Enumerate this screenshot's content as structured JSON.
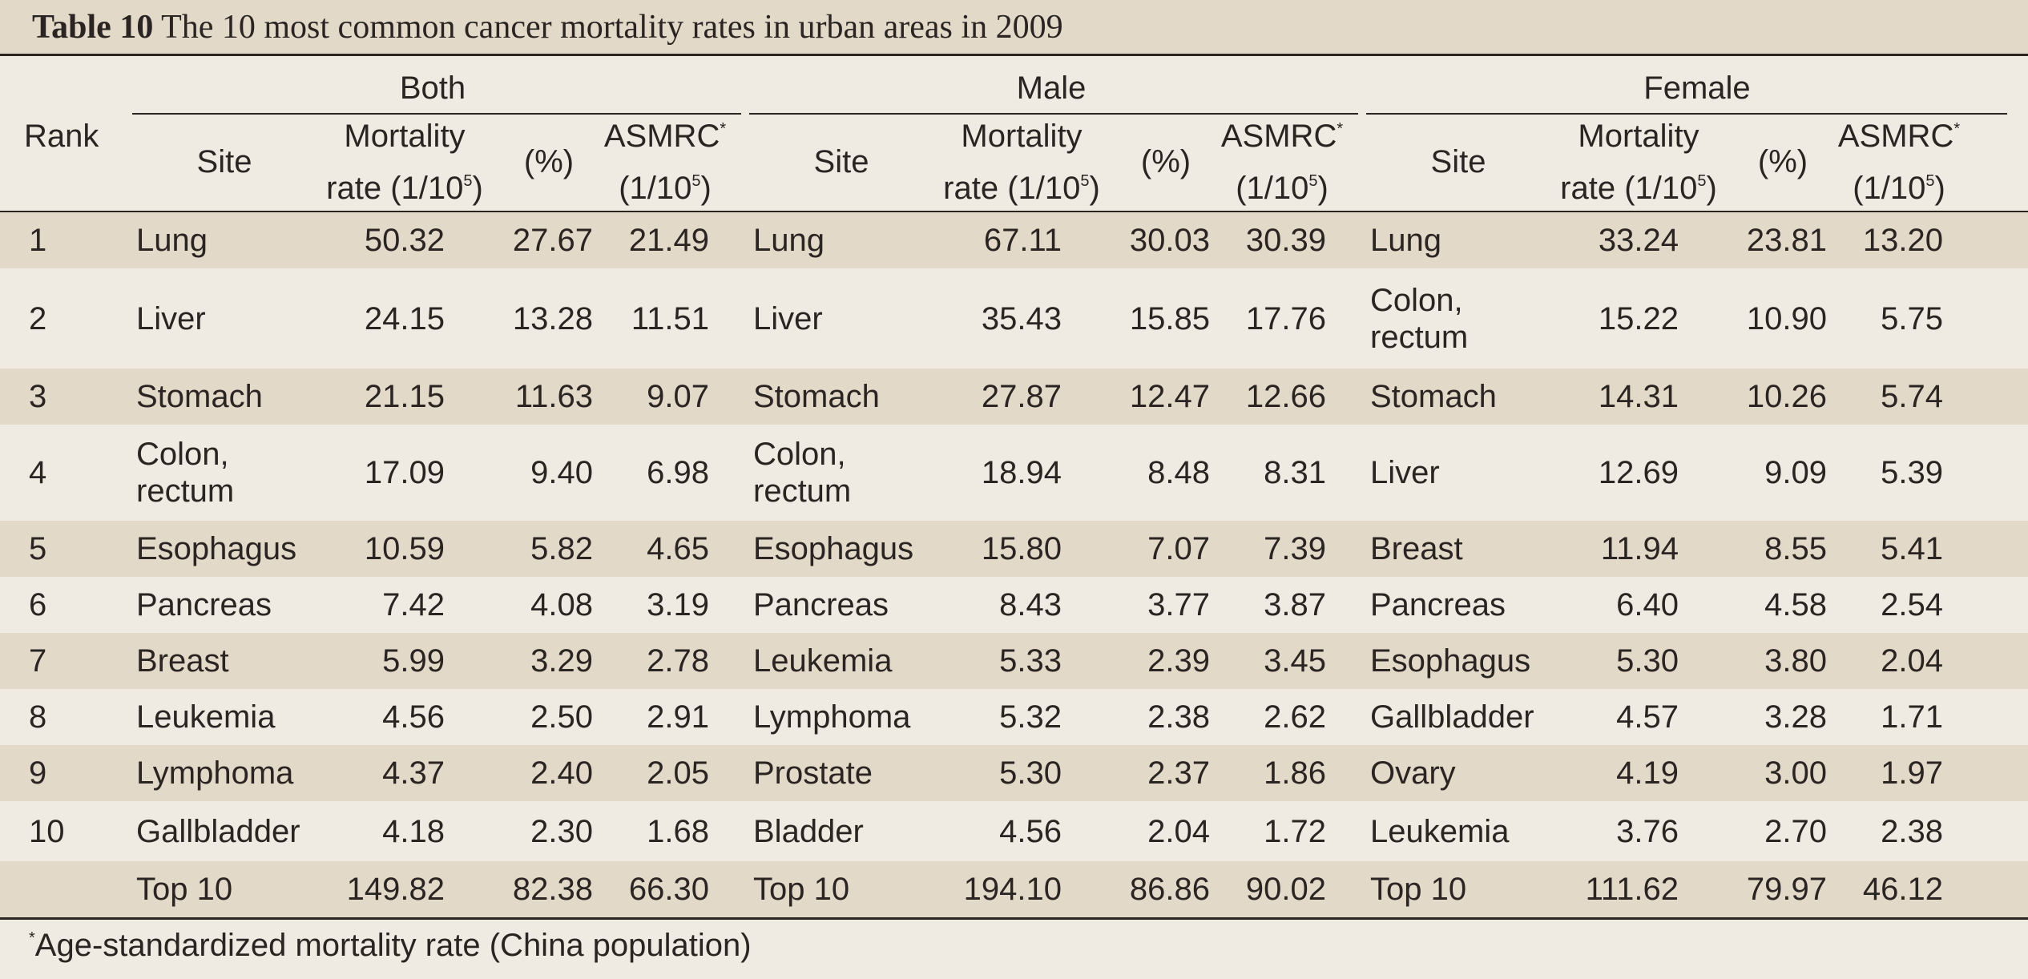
{
  "title": {
    "label": "Table 10",
    "text": "The 10 most common cancer mortality rates in urban areas in 2009"
  },
  "header": {
    "rank": "Rank",
    "groups": [
      "Both",
      "Male",
      "Female"
    ],
    "site": "Site",
    "mortality_line1": "Mortality",
    "mortality_line2": "rate (1/10",
    "exp": "5",
    "close_paren": ")",
    "percent": "(%)",
    "asmrc": "ASMRC",
    "asterisk": "*",
    "asmrc_line2": "(1/10"
  },
  "rows": [
    {
      "rank": "1",
      "both": {
        "site": "Lung",
        "rate": "50.32",
        "pct": "27.67",
        "asmrc": "21.49"
      },
      "male": {
        "site": "Lung",
        "rate": "67.11",
        "pct": "30.03",
        "asmrc": "30.39"
      },
      "female": {
        "site": "Lung",
        "rate": "33.24",
        "pct": "23.81",
        "asmrc": "13.20"
      }
    },
    {
      "rank": "2",
      "both": {
        "site": "Liver",
        "rate": "24.15",
        "pct": "13.28",
        "asmrc": "11.51"
      },
      "male": {
        "site": "Liver",
        "rate": "35.43",
        "pct": "15.85",
        "asmrc": "17.76"
      },
      "female": {
        "site": "Colon, rectum",
        "rate": "15.22",
        "pct": "10.90",
        "asmrc": "5.75"
      }
    },
    {
      "rank": "3",
      "both": {
        "site": "Stomach",
        "rate": "21.15",
        "pct": "11.63",
        "asmrc": "9.07"
      },
      "male": {
        "site": "Stomach",
        "rate": "27.87",
        "pct": "12.47",
        "asmrc": "12.66"
      },
      "female": {
        "site": "Stomach",
        "rate": "14.31",
        "pct": "10.26",
        "asmrc": "5.74"
      }
    },
    {
      "rank": "4",
      "both": {
        "site": "Colon, rectum",
        "rate": "17.09",
        "pct": "9.40",
        "asmrc": "6.98"
      },
      "male": {
        "site": "Colon, rectum",
        "rate": "18.94",
        "pct": "8.48",
        "asmrc": "8.31"
      },
      "female": {
        "site": "Liver",
        "rate": "12.69",
        "pct": "9.09",
        "asmrc": "5.39"
      }
    },
    {
      "rank": "5",
      "both": {
        "site": "Esophagus",
        "rate": "10.59",
        "pct": "5.82",
        "asmrc": "4.65"
      },
      "male": {
        "site": "Esophagus",
        "rate": "15.80",
        "pct": "7.07",
        "asmrc": "7.39"
      },
      "female": {
        "site": "Breast",
        "rate": "11.94",
        "pct": "8.55",
        "asmrc": "5.41"
      }
    },
    {
      "rank": "6",
      "both": {
        "site": "Pancreas",
        "rate": "7.42",
        "pct": "4.08",
        "asmrc": "3.19"
      },
      "male": {
        "site": "Pancreas",
        "rate": "8.43",
        "pct": "3.77",
        "asmrc": "3.87"
      },
      "female": {
        "site": "Pancreas",
        "rate": "6.40",
        "pct": "4.58",
        "asmrc": "2.54"
      }
    },
    {
      "rank": "7",
      "both": {
        "site": "Breast",
        "rate": "5.99",
        "pct": "3.29",
        "asmrc": "2.78"
      },
      "male": {
        "site": "Leukemia",
        "rate": "5.33",
        "pct": "2.39",
        "asmrc": "3.45"
      },
      "female": {
        "site": "Esophagus",
        "rate": "5.30",
        "pct": "3.80",
        "asmrc": "2.04"
      }
    },
    {
      "rank": "8",
      "both": {
        "site": "Leukemia",
        "rate": "4.56",
        "pct": "2.50",
        "asmrc": "2.91"
      },
      "male": {
        "site": "Lymphoma",
        "rate": "5.32",
        "pct": "2.38",
        "asmrc": "2.62"
      },
      "female": {
        "site": "Gallbladder",
        "rate": "4.57",
        "pct": "3.28",
        "asmrc": "1.71"
      }
    },
    {
      "rank": "9",
      "both": {
        "site": "Lymphoma",
        "rate": "4.37",
        "pct": "2.40",
        "asmrc": "2.05"
      },
      "male": {
        "site": "Prostate",
        "rate": "5.30",
        "pct": "2.37",
        "asmrc": "1.86"
      },
      "female": {
        "site": "Ovary",
        "rate": "4.19",
        "pct": "3.00",
        "asmrc": "1.97"
      }
    },
    {
      "rank": "10",
      "both": {
        "site": "Gallbladder",
        "rate": "4.18",
        "pct": "2.30",
        "asmrc": "1.68"
      },
      "male": {
        "site": "Bladder",
        "rate": "4.56",
        "pct": "2.04",
        "asmrc": "1.72"
      },
      "female": {
        "site": "Leukemia",
        "rate": "3.76",
        "pct": "2.70",
        "asmrc": "2.38"
      }
    },
    {
      "rank": "",
      "both": {
        "site": "Top 10",
        "rate": "149.82",
        "pct": "82.38",
        "asmrc": "66.30"
      },
      "male": {
        "site": "Top 10",
        "rate": "194.10",
        "pct": "86.86",
        "asmrc": "90.02"
      },
      "female": {
        "site": "Top 10",
        "rate": "111.62",
        "pct": "79.97",
        "asmrc": "46.12"
      }
    }
  ],
  "footnote": {
    "marker": "*",
    "text": "Age-standardized mortality rate (China population)"
  },
  "colors": {
    "shade": "#e3d9c8",
    "background": "#efebe2",
    "rule": "#2a2522"
  }
}
